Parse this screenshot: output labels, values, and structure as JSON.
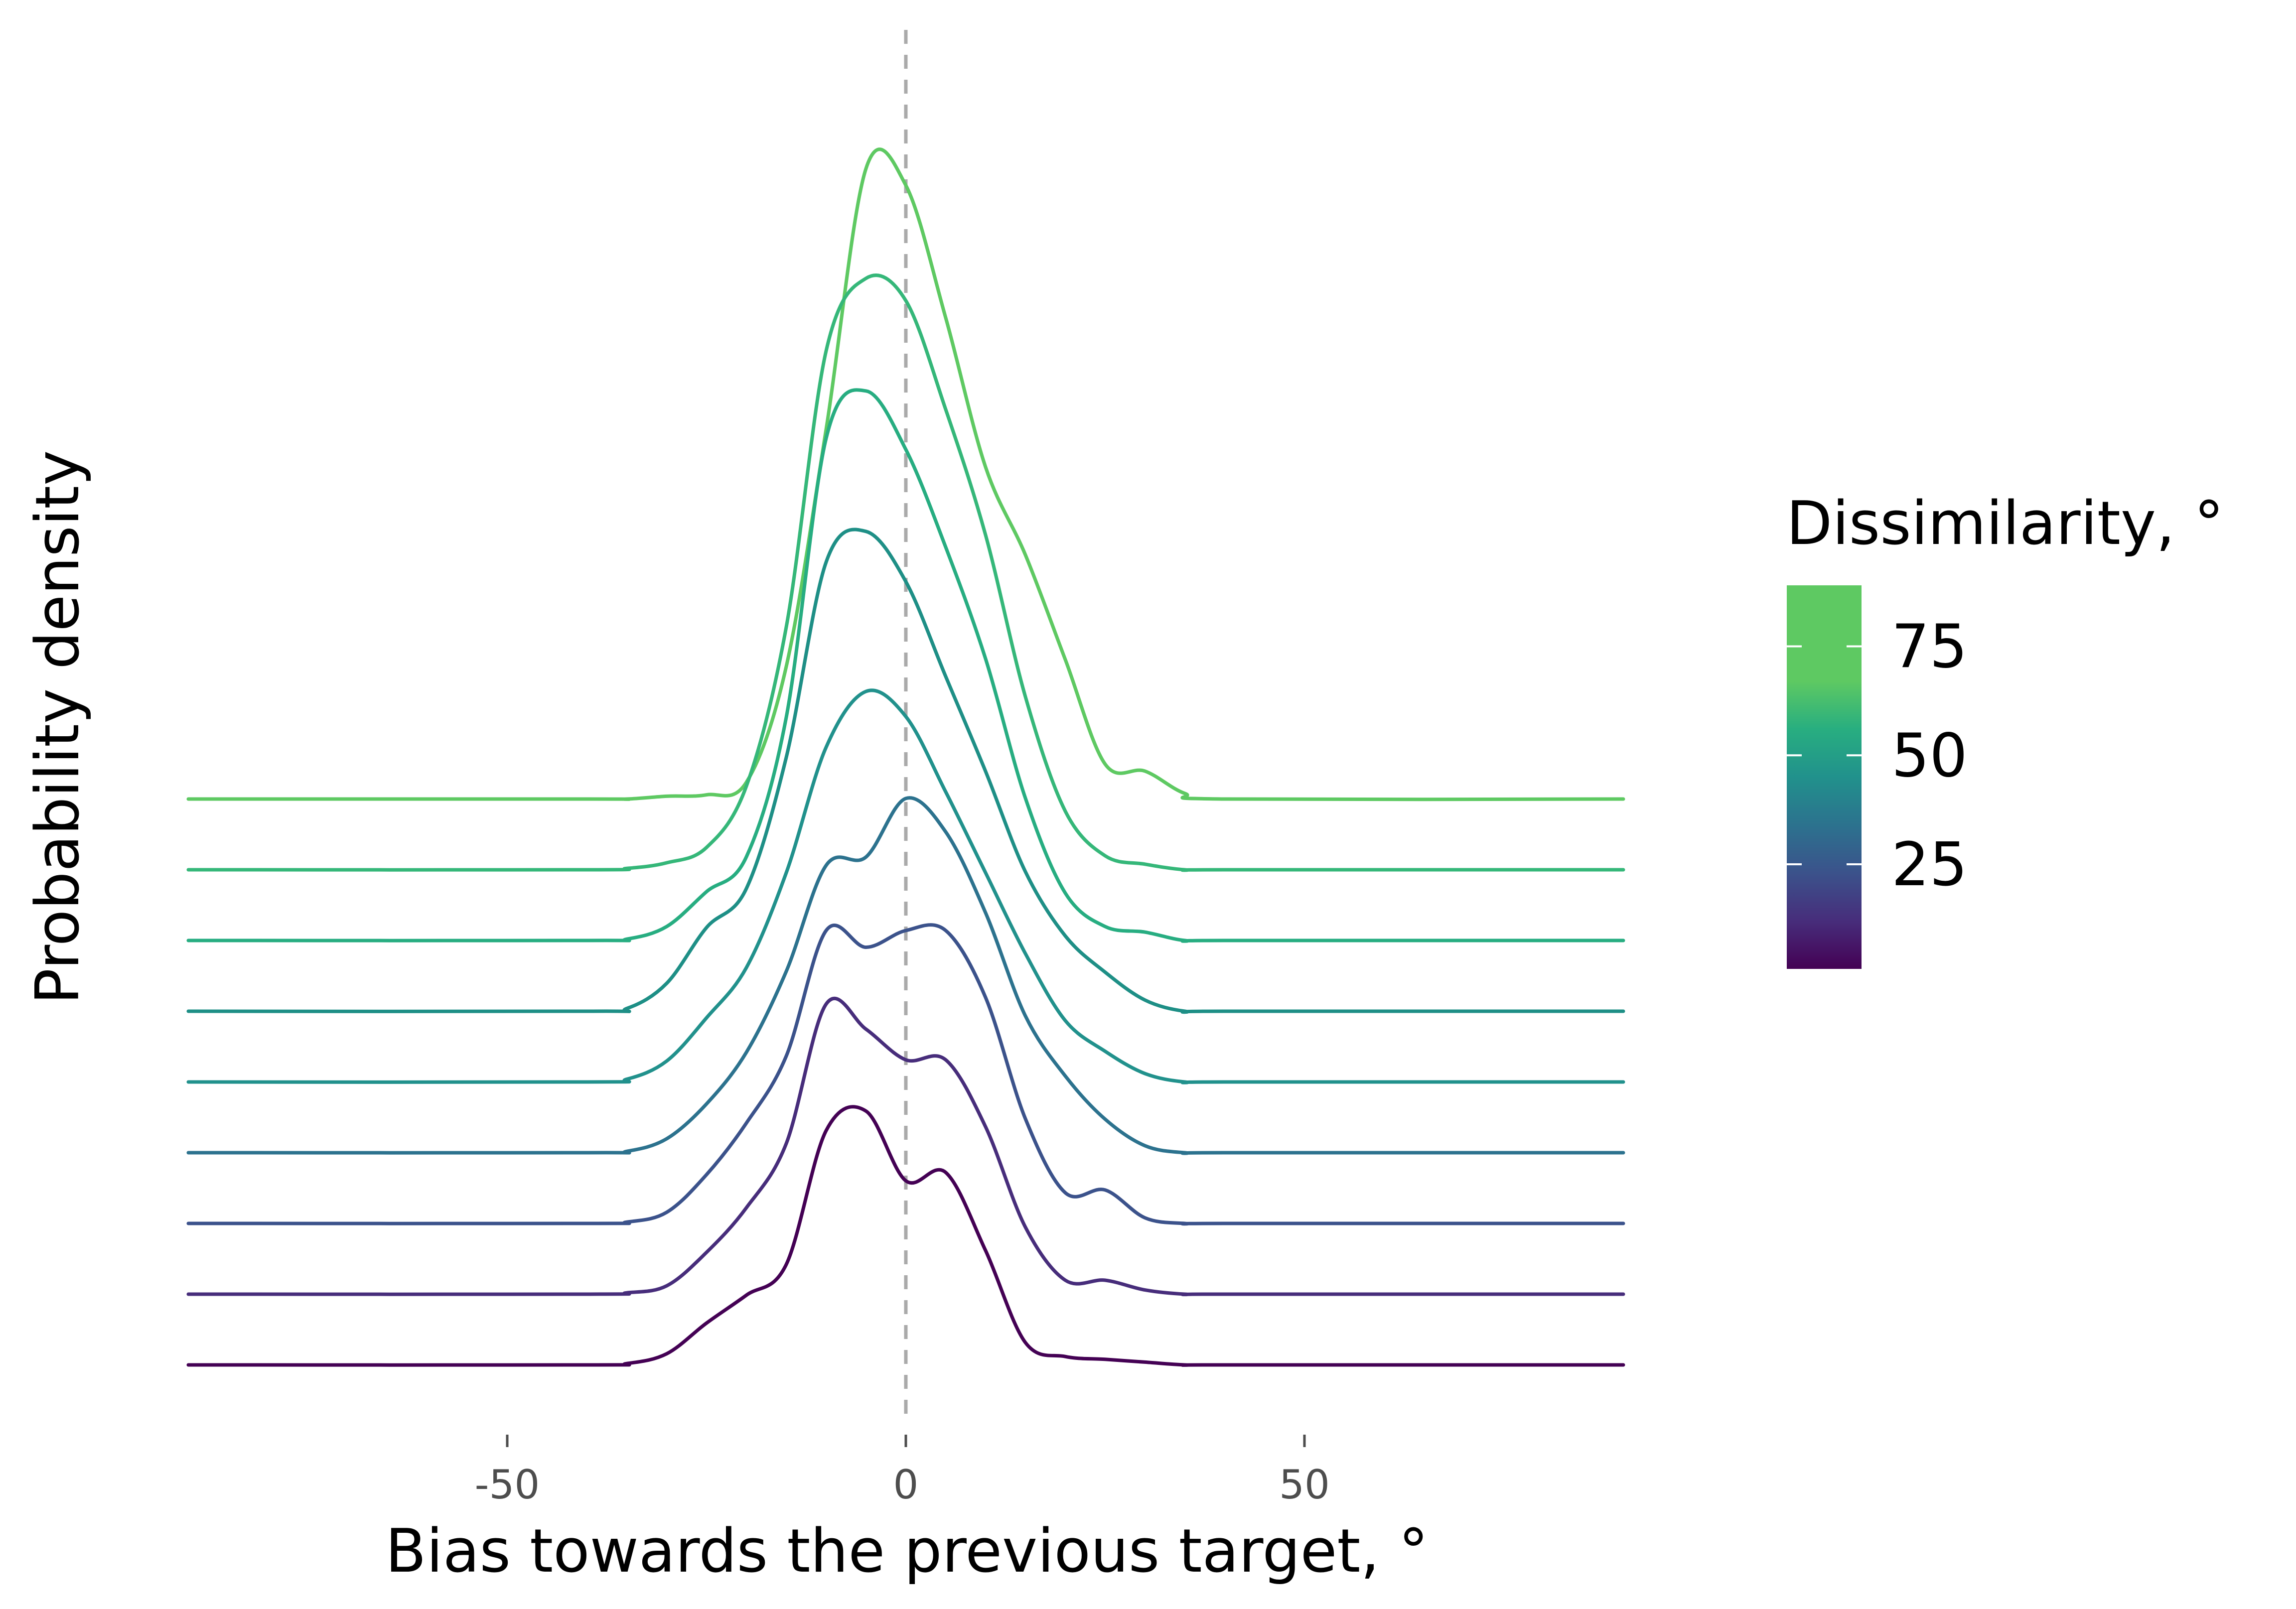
{
  "chart_data": {
    "type": "line",
    "subtype": "ridgeline-density",
    "xlabel": "Bias towards the previous target, °",
    "ylabel": "Probability density",
    "xlim": [
      -90,
      90
    ],
    "x_ticks": [
      -50,
      0,
      50
    ],
    "x_tick_labels": [
      "-50",
      "0",
      "50"
    ],
    "reference_line": {
      "x": 0,
      "style": "dashed",
      "color": "#aaaaaa"
    },
    "grid": false,
    "legend": {
      "title": "Dissimilarity, °",
      "type": "colorbar",
      "position": "right",
      "range": [
        1,
        89
      ],
      "ticks": [
        25,
        50,
        75
      ],
      "tick_labels": [
        "25",
        "50",
        "75"
      ]
    },
    "colormap": "viridis",
    "x": [
      -90,
      -40,
      -35,
      -30,
      -25,
      -20,
      -15,
      -10,
      -5,
      0,
      5,
      10,
      15,
      20,
      25,
      30,
      35,
      40,
      90
    ],
    "series": [
      {
        "dissimilarity": 1,
        "color": "#440154",
        "values": [
          0,
          0,
          0.01,
          0.08,
          0.3,
          0.5,
          0.72,
          1.68,
          1.82,
          1.32,
          1.38,
          0.82,
          0.16,
          0.06,
          0.04,
          0.02,
          0,
          0,
          0
        ]
      },
      {
        "dissimilarity": 10,
        "color": "#472d7b",
        "values": [
          0,
          0,
          0.01,
          0.06,
          0.3,
          0.62,
          1.08,
          2.08,
          1.9,
          1.68,
          1.68,
          1.2,
          0.48,
          0.1,
          0.1,
          0.03,
          0,
          0,
          0
        ]
      },
      {
        "dissimilarity": 20,
        "color": "#3b528b",
        "values": [
          0,
          0,
          0.01,
          0.08,
          0.35,
          0.72,
          1.2,
          2.1,
          1.98,
          2.1,
          2.1,
          1.62,
          0.75,
          0.22,
          0.24,
          0.04,
          0,
          0,
          0
        ]
      },
      {
        "dissimilarity": 30,
        "color": "#2c728e",
        "values": [
          0,
          0,
          0.01,
          0.1,
          0.35,
          0.72,
          1.3,
          2.06,
          2.12,
          2.54,
          2.3,
          1.72,
          0.98,
          0.55,
          0.24,
          0.05,
          0,
          0,
          0
        ]
      },
      {
        "dissimilarity": 40,
        "color": "#21918c",
        "values": [
          0,
          0,
          0.02,
          0.15,
          0.46,
          0.82,
          1.5,
          2.4,
          2.8,
          2.62,
          2.08,
          1.5,
          0.92,
          0.44,
          0.22,
          0.06,
          0,
          0,
          0
        ]
      },
      {
        "dissimilarity": 50,
        "color": "#1e8f86",
        "values": [
          0,
          0,
          0.02,
          0.2,
          0.6,
          0.88,
          1.82,
          3.22,
          3.44,
          3.08,
          2.4,
          1.72,
          1.0,
          0.54,
          0.28,
          0.08,
          0,
          0,
          0
        ]
      },
      {
        "dissimilarity": 60,
        "color": "#27ad81",
        "values": [
          0,
          0,
          0.01,
          0.1,
          0.35,
          0.6,
          1.6,
          3.6,
          3.94,
          3.52,
          2.82,
          2.02,
          1.02,
          0.34,
          0.1,
          0.06,
          0,
          0,
          0
        ]
      },
      {
        "dissimilarity": 70,
        "color": "#35b779",
        "values": [
          0,
          0,
          0.01,
          0.05,
          0.16,
          0.6,
          1.74,
          3.72,
          4.24,
          4.08,
          3.3,
          2.4,
          1.24,
          0.42,
          0.1,
          0.04,
          0,
          0,
          0
        ]
      },
      {
        "dissimilarity": 80,
        "color": "#5ec962",
        "values": [
          0,
          0,
          0,
          0.02,
          0.03,
          0.12,
          0.95,
          2.65,
          4.52,
          4.4,
          3.45,
          2.38,
          1.75,
          1.0,
          0.25,
          0.2,
          0.04,
          0,
          0
        ]
      }
    ]
  }
}
